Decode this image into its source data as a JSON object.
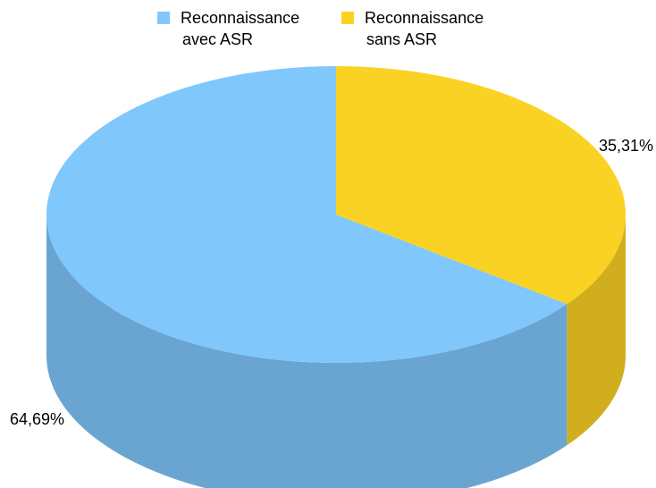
{
  "chart_data": {
    "type": "pie",
    "title": "",
    "categories": [
      "Reconnaissance avec ASR",
      "Reconnaissance sans ASR"
    ],
    "values": [
      64.69,
      35.31
    ],
    "value_labels": [
      "64,69%",
      "35,31%"
    ],
    "legend": {
      "placement": "top",
      "entries": [
        {
          "line1": "Reconnaissance",
          "line2": "avec ASR",
          "color": "#80c8fb"
        },
        {
          "line1": "Reconnaissance",
          "line2": "sans ASR",
          "color": "#fad223"
        }
      ]
    },
    "style": "3d",
    "colors": {
      "top": [
        "#80c8fb",
        "#fad223"
      ],
      "side": [
        "#6aa5d2",
        "#d1ae1e"
      ]
    }
  }
}
